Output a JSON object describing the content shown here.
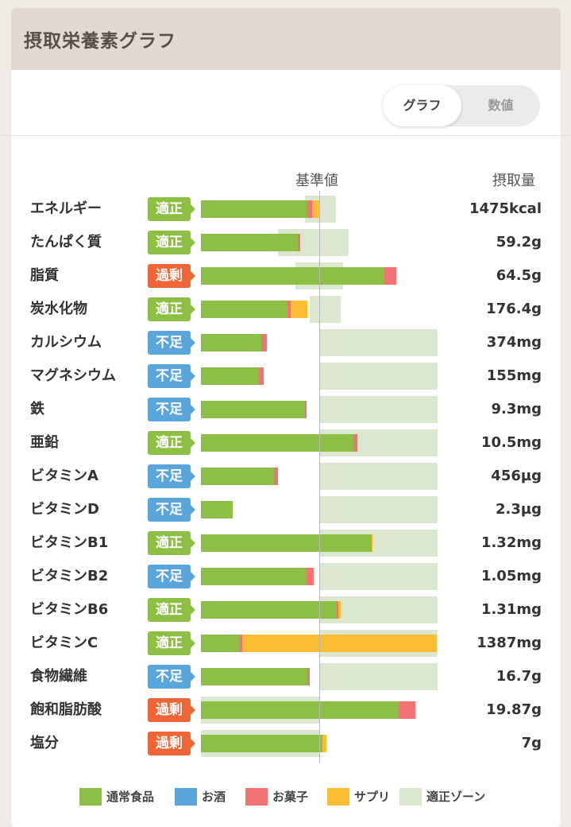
{
  "card": {
    "title": "摂取栄養素グラフ"
  },
  "toggle": {
    "graph_label": "グラフ",
    "value_label": "数値",
    "active": "graph"
  },
  "table_headers": {
    "baseline": "基準値",
    "intake": "摂取量"
  },
  "colors": {
    "normal_food": "#8dbf45",
    "alcohol": "#5aa5dc",
    "snacks": "#f27374",
    "supplement": "#fbbd34",
    "zone": "#dbe8cf",
    "badge_ok": "#8dbf45",
    "badge_low": "#5aa5dc",
    "badge_high": "#ef6535"
  },
  "legend": [
    {
      "key": "normal_food",
      "label": "通常食品"
    },
    {
      "key": "alcohol",
      "label": "お酒"
    },
    {
      "key": "snacks",
      "label": "お菓子"
    },
    {
      "key": "supplement",
      "label": "サプリ"
    },
    {
      "key": "zone",
      "label": "適正ゾーン"
    }
  ],
  "chart_data": {
    "type": "bar",
    "orientation": "horizontal",
    "stacked": true,
    "units": "percent of baseline (基準値 = 100)",
    "baseline": 100,
    "series_order": [
      "通常食品",
      "お酒",
      "お菓子",
      "サプリ"
    ],
    "rows": [
      {
        "name": "エネルギー",
        "status": "適正",
        "value_text": "1475kcal",
        "zone": [
          88,
          114
        ],
        "normal": 90,
        "alcohol": 0,
        "snacks": 4,
        "supplement": 6
      },
      {
        "name": "たんぱく質",
        "status": "適正",
        "value_text": "59.2g",
        "zone": [
          65,
          125
        ],
        "normal": 82,
        "alcohol": 0,
        "snacks": 2,
        "supplement": 0
      },
      {
        "name": "脂質",
        "status": "過剰",
        "value_text": "64.5g",
        "zone": [
          80,
          120
        ],
        "normal": 155,
        "alcohol": 0,
        "snacks": 10,
        "supplement": 0
      },
      {
        "name": "炭水化物",
        "status": "適正",
        "value_text": "176.4g",
        "zone": [
          92,
          118
        ],
        "normal": 73,
        "alcohol": 0,
        "snacks": 3,
        "supplement": 14
      },
      {
        "name": "カルシウム",
        "status": "不足",
        "value_text": "374mg",
        "zone": [
          100,
          200
        ],
        "normal": 51,
        "alcohol": 0,
        "snacks": 5,
        "supplement": 0
      },
      {
        "name": "マグネシウム",
        "status": "不足",
        "value_text": "155mg",
        "zone": [
          100,
          200
        ],
        "normal": 49,
        "alcohol": 0,
        "snacks": 4,
        "supplement": 0
      },
      {
        "name": "鉄",
        "status": "不足",
        "value_text": "9.3mg",
        "zone": [
          100,
          200
        ],
        "normal": 88,
        "alcohol": 0,
        "snacks": 1,
        "supplement": 0
      },
      {
        "name": "亜鉛",
        "status": "適正",
        "value_text": "10.5mg",
        "zone": [
          100,
          200
        ],
        "normal": 129,
        "alcohol": 0,
        "snacks": 3,
        "supplement": 0
      },
      {
        "name": "ビタミンA",
        "status": "不足",
        "value_text": "456µg",
        "zone": [
          100,
          200
        ],
        "normal": 62,
        "alcohol": 0,
        "snacks": 3,
        "supplement": 0
      },
      {
        "name": "ビタミンD",
        "status": "不足",
        "value_text": "2.3µg",
        "zone": [
          100,
          200
        ],
        "normal": 27,
        "alcohol": 0,
        "snacks": 0,
        "supplement": 0
      },
      {
        "name": "ビタミンB1",
        "status": "適正",
        "value_text": "1.32mg",
        "zone": [
          100,
          200
        ],
        "normal": 144,
        "alcohol": 0,
        "snacks": 0,
        "supplement": 1
      },
      {
        "name": "ビタミンB2",
        "status": "不足",
        "value_text": "1.05mg",
        "zone": [
          100,
          200
        ],
        "normal": 89,
        "alcohol": 0,
        "snacks": 6,
        "supplement": 0
      },
      {
        "name": "ビタミンB6",
        "status": "適正",
        "value_text": "1.31mg",
        "zone": [
          100,
          200
        ],
        "normal": 115,
        "alcohol": 0,
        "snacks": 1,
        "supplement": 2
      },
      {
        "name": "ビタミンC",
        "status": "適正",
        "value_text": "1387mg",
        "zone": [
          100,
          200
        ],
        "normal": 33,
        "alcohol": 0,
        "snacks": 2,
        "supplement": 164
      },
      {
        "name": "食物繊維",
        "status": "不足",
        "value_text": "16.7g",
        "zone": [
          100,
          200
        ],
        "normal": 90,
        "alcohol": 0,
        "snacks": 2,
        "supplement": 0
      },
      {
        "name": "飽和脂肪酸",
        "status": "過剰",
        "value_text": "19.87g",
        "zone": [
          0,
          100
        ],
        "normal": 167,
        "alcohol": 0,
        "snacks": 14,
        "supplement": 0
      },
      {
        "name": "塩分",
        "status": "過剰",
        "value_text": "7g",
        "zone": [
          0,
          100
        ],
        "normal": 103,
        "alcohol": 0,
        "snacks": 0,
        "supplement": 3
      }
    ]
  }
}
